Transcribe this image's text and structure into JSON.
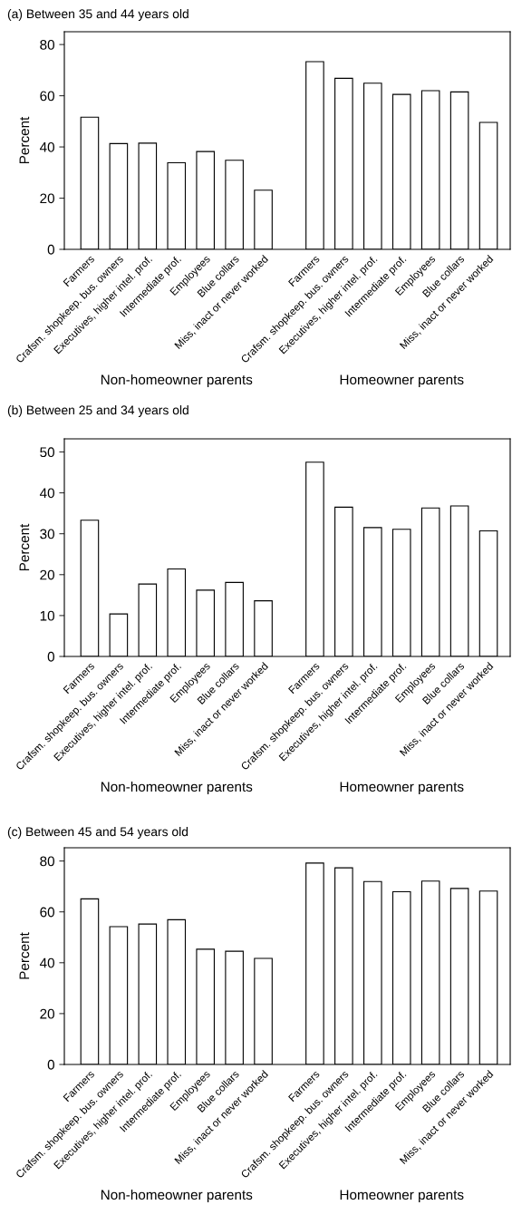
{
  "chart_data": [
    {
      "type": "bar",
      "title": "(a) Between 35 and 44 years old",
      "ylabel": "Percent",
      "categories": [
        "Farmers",
        "Crafsm. shopkeep. bus. owners",
        "Executives, higher intel. prof.",
        "Intermediate prof.",
        "Employees",
        "Blue collars",
        "Miss, inact or never worked",
        "Farmers",
        "Crafsm. shopkeep. bus. owners",
        "Executives, higher intel. prof.",
        "Intermediate prof.",
        "Employees",
        "Blue collars",
        "Miss, inact or never worked"
      ],
      "values": [
        51.6,
        41.3,
        41.5,
        33.8,
        38.2,
        34.8,
        23.1,
        73.3,
        66.8,
        64.9,
        60.5,
        62.0,
        61.5,
        49.6
      ],
      "color": "#ffffff",
      "ylim": [
        0,
        85
      ],
      "yticks": [
        0,
        20,
        40,
        60,
        80
      ],
      "grid": false,
      "annotations": [
        "Non-homeowner parents",
        "Homeowner parents"
      ]
    },
    {
      "type": "bar",
      "title": "(b) Between 25 and 34 years old",
      "ylabel": "Percent",
      "categories": [
        "Farmers",
        "Crafsm. shopkeep. bus. owners",
        "Executives, higher intel. prof.",
        "Intermediate prof.",
        "Employees",
        "Blue collars",
        "Miss, inact or never worked",
        "Farmers",
        "Crafsm. shopkeep. bus. owners",
        "Executives, higher intel. prof.",
        "Intermediate prof.",
        "Employees",
        "Blue collars",
        "Miss, inact or never worked"
      ],
      "values": [
        33.3,
        10.4,
        17.7,
        21.4,
        16.2,
        18.1,
        13.6,
        47.5,
        36.5,
        31.5,
        31.1,
        36.3,
        36.8,
        30.7
      ],
      "color": "#ffffff",
      "ylim": [
        0,
        53.2
      ],
      "yticks": [
        0,
        10,
        20,
        30,
        40,
        50
      ],
      "grid": false,
      "annotations": [
        "Non-homeowner parents",
        "Homeowner parents"
      ]
    },
    {
      "type": "bar",
      "title": "(c) Between 45 and 54 years old",
      "ylabel": "Percent",
      "categories": [
        "Farmers",
        "Crafsm. shopkeep. bus. owners",
        "Executives, higher intel. prof.",
        "Intermediate prof.",
        "Employees",
        "Blue collars",
        "Miss, inact or never worked",
        "Farmers",
        "Crafsm. shopkeep. bus. owners",
        "Executives, higher intel. prof.",
        "Intermediate prof.",
        "Employees",
        "Blue collars",
        "Miss, inact or never worked"
      ],
      "values": [
        65.1,
        54.2,
        55.2,
        56.9,
        45.3,
        44.5,
        41.7,
        79.2,
        77.3,
        71.9,
        67.9,
        72.1,
        69.2,
        68.2
      ],
      "color": "#ffffff",
      "ylim": [
        0,
        85.2
      ],
      "yticks": [
        0,
        20,
        40,
        60,
        80
      ],
      "grid": false,
      "annotations": [
        "Non-homeowner parents",
        "Homeowner parents"
      ]
    }
  ]
}
